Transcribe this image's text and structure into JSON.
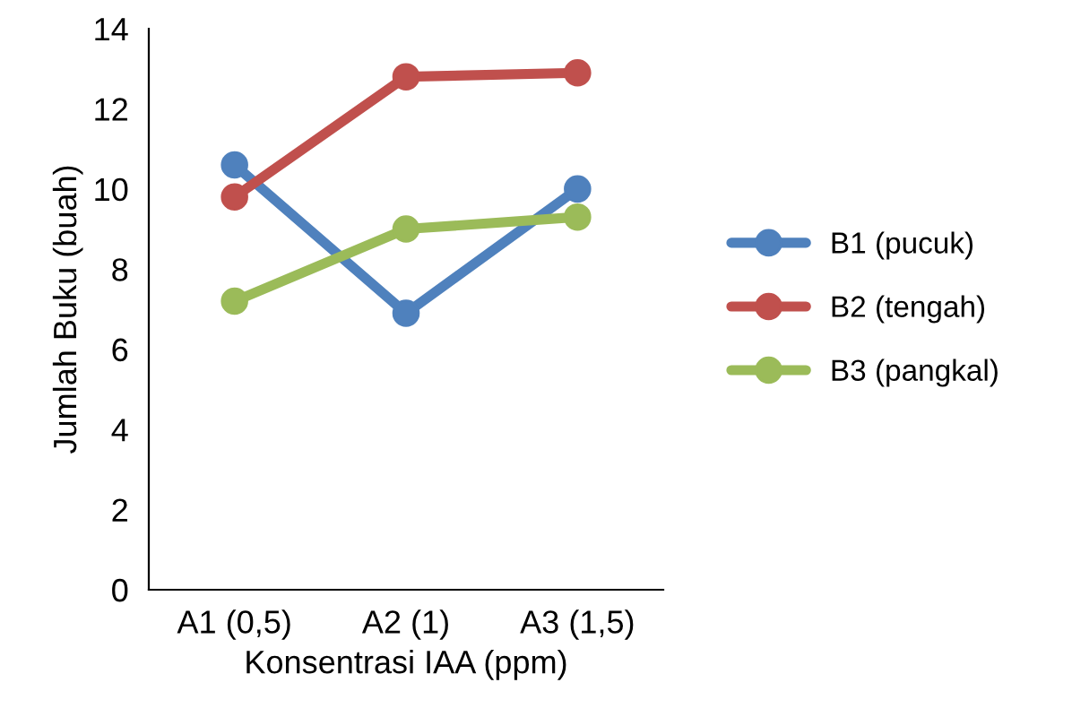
{
  "chart_data": {
    "type": "line",
    "xlabel": "Konsentrasi IAA (ppm)",
    "ylabel": "Jumlah Buku (buah)",
    "categories": [
      "A1 (0,5)",
      "A2 (1)",
      "A3 (1,5)"
    ],
    "series": [
      {
        "name": "B1 (pucuk)",
        "color": "#4f81bd",
        "values": [
          10.6,
          6.9,
          10.0
        ]
      },
      {
        "name": "B2 (tengah)",
        "color": "#c0504d",
        "values": [
          9.8,
          12.8,
          12.9
        ]
      },
      {
        "name": "B3 (pangkal)",
        "color": "#9bbb59",
        "values": [
          7.2,
          9.0,
          9.3
        ]
      }
    ],
    "ylim": [
      0,
      14
    ],
    "yticks": [
      0,
      2,
      4,
      6,
      8,
      10,
      12,
      14
    ],
    "grid": false,
    "legend": "right",
    "marker": "circle",
    "line_style": "solid"
  }
}
